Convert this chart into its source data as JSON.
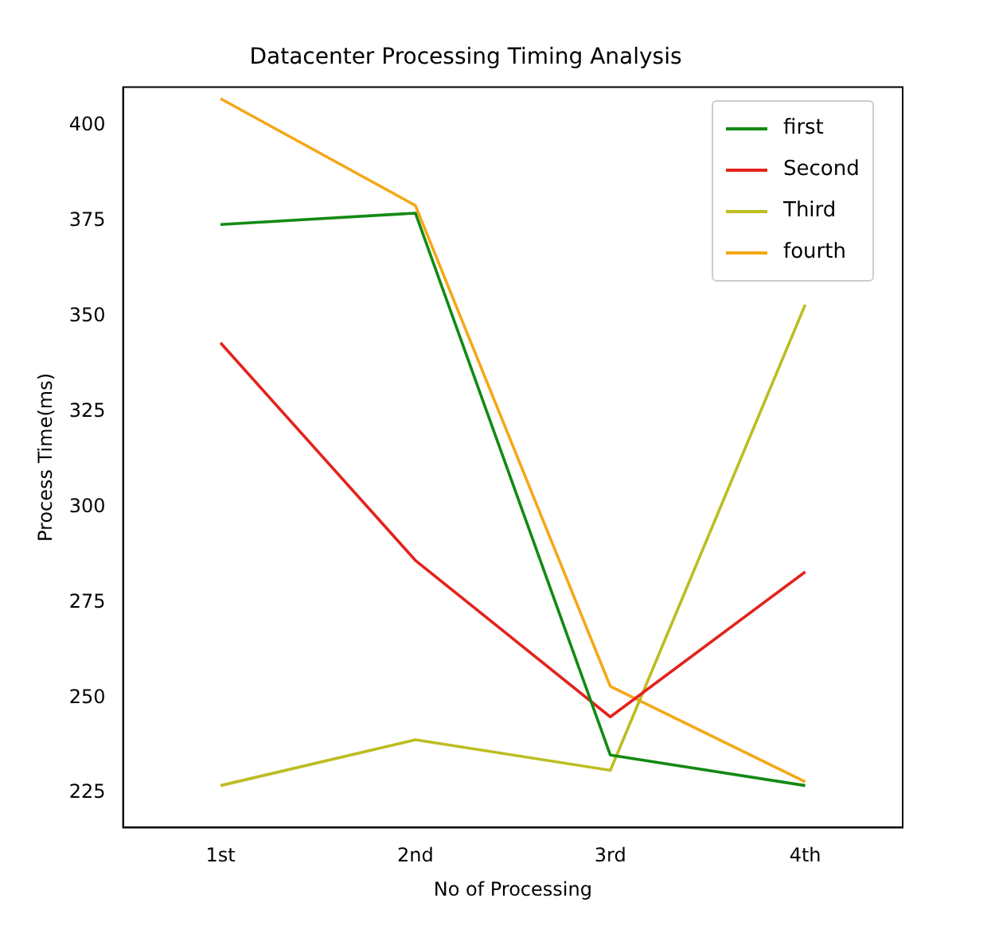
{
  "chart_data": {
    "type": "line",
    "title": "Datacenter Processing Timing Analysis",
    "xlabel": "No of Processing",
    "ylabel": "Process Time(ms)",
    "categories": [
      "1st",
      "2nd",
      "3rd",
      "4th"
    ],
    "series": [
      {
        "name": "first",
        "color": "#138a13",
        "values": [
          374,
          377,
          235,
          227
        ]
      },
      {
        "name": "Second",
        "color": "#e3231c",
        "values": [
          343,
          286,
          245,
          283
        ]
      },
      {
        "name": "Third",
        "color": "#bcbd22",
        "values": [
          227,
          239,
          231,
          353
        ]
      },
      {
        "name": "fourth",
        "color": "#f5a718",
        "values": [
          407,
          379,
          253,
          228
        ]
      }
    ],
    "ylim": [
      216,
      410
    ],
    "yticks": [
      225,
      250,
      275,
      300,
      325,
      350,
      375,
      400
    ],
    "grid": false,
    "legend": "top right",
    "marker": "none",
    "line_style": "solid"
  }
}
